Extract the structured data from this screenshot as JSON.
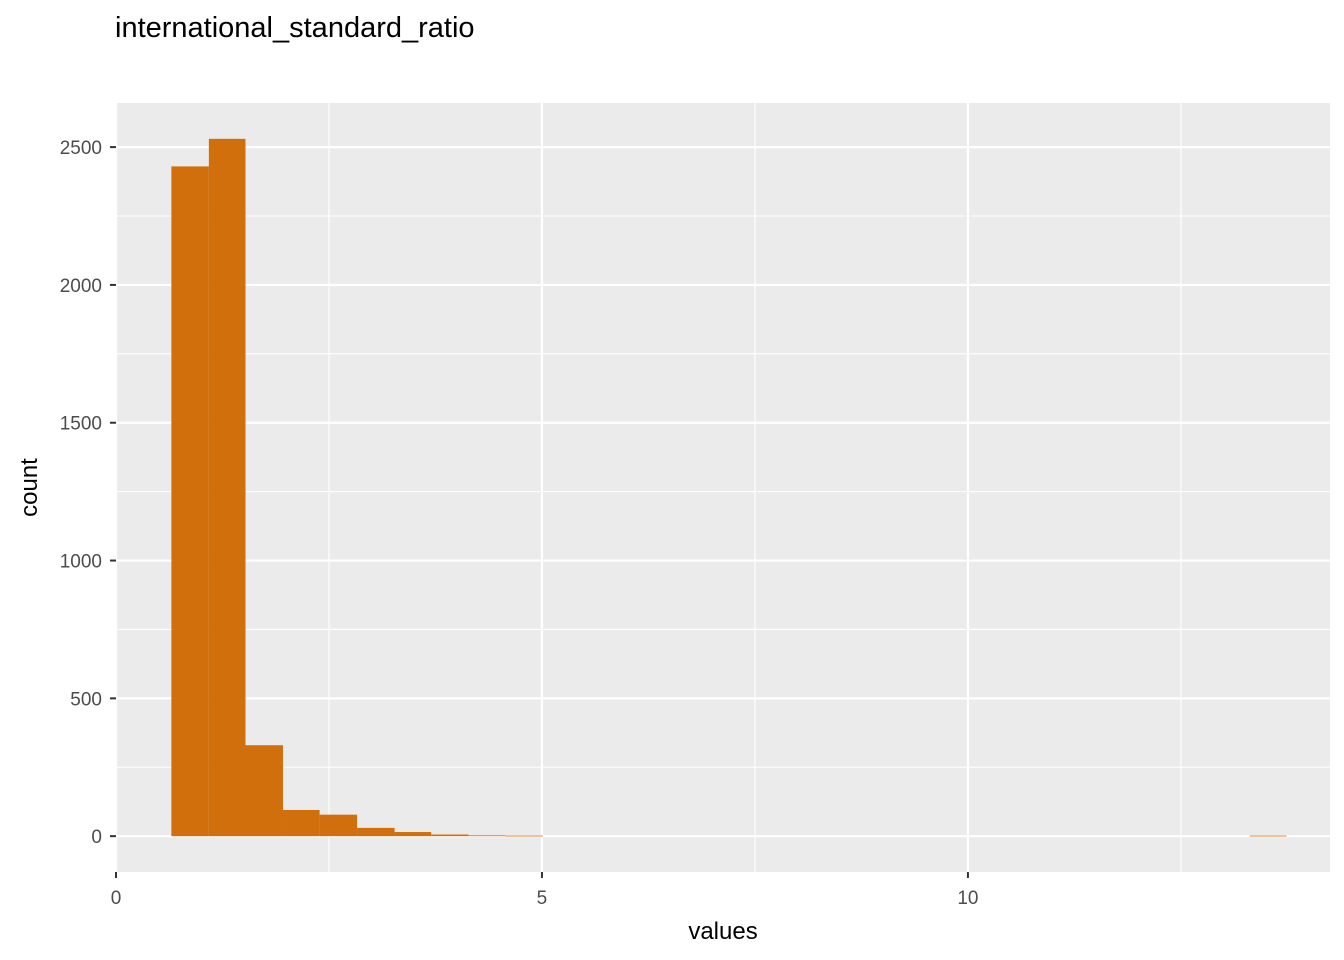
{
  "chart_data": {
    "type": "bar",
    "title": "international_standard_ratio",
    "xlabel": "values",
    "ylabel": "count",
    "xlim": [
      0,
      14.25
    ],
    "ylim": [
      -130,
      2660
    ],
    "x_ticks": [
      0,
      5,
      10
    ],
    "y_ticks": [
      0,
      500,
      1000,
      1500,
      2000,
      2500
    ],
    "grid": true,
    "bar_color": "#D06F0C",
    "panel_background": "#EBEBEB",
    "bins": [
      {
        "x0": 0.65,
        "x1": 1.09,
        "count": 2430
      },
      {
        "x0": 1.09,
        "x1": 1.52,
        "count": 2530
      },
      {
        "x0": 1.52,
        "x1": 1.96,
        "count": 330
      },
      {
        "x0": 1.96,
        "x1": 2.39,
        "count": 95
      },
      {
        "x0": 2.39,
        "x1": 2.83,
        "count": 78
      },
      {
        "x0": 2.83,
        "x1": 3.27,
        "count": 30
      },
      {
        "x0": 3.27,
        "x1": 3.7,
        "count": 15
      },
      {
        "x0": 3.7,
        "x1": 4.14,
        "count": 6
      },
      {
        "x0": 4.14,
        "x1": 4.57,
        "count": 3
      },
      {
        "x0": 4.57,
        "x1": 5.01,
        "count": 2
      },
      {
        "x0": 13.31,
        "x1": 13.74,
        "count": 2
      }
    ]
  }
}
